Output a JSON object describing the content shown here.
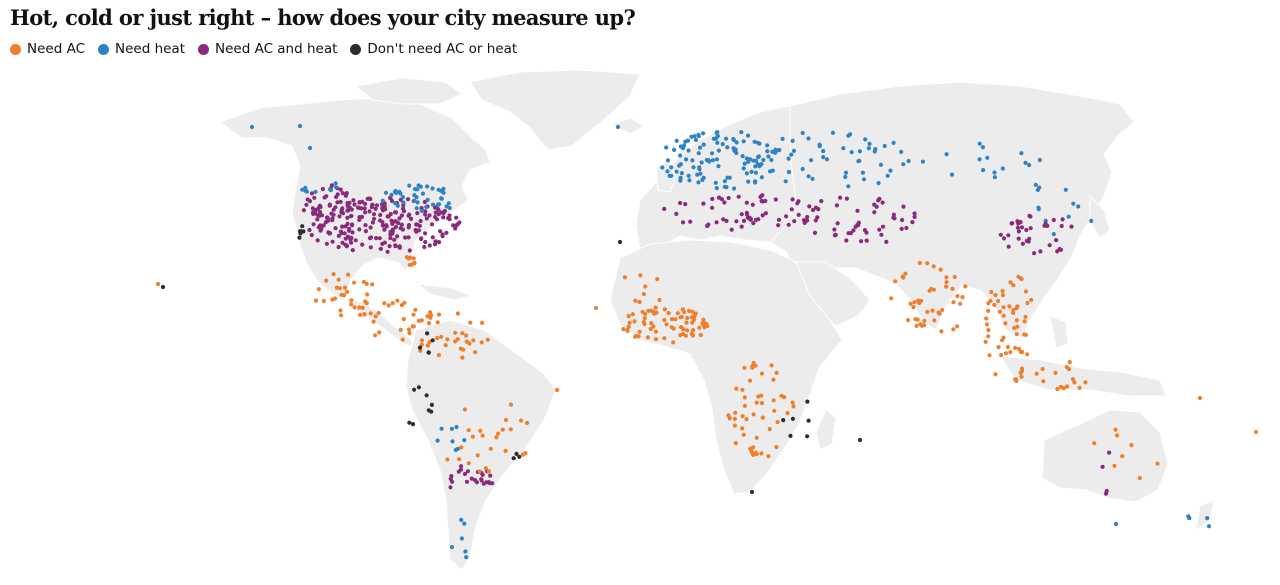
{
  "title": "Hot, cold or just right – how does your city measure up?",
  "legend": [
    {
      "id": "ac",
      "label": "Need AC",
      "color": "#f07f2b"
    },
    {
      "id": "heat",
      "label": "Need heat",
      "color": "#2f83c5"
    },
    {
      "id": "both",
      "label": "Need AC and heat",
      "color": "#8a2a7b"
    },
    {
      "id": "none",
      "label": "Don't need AC or heat",
      "color": "#2d2d2d"
    }
  ],
  "map": {
    "projection": "equirectangular",
    "land_color": "#ececec",
    "background": "#ffffff",
    "point_counts": {
      "ac": 420,
      "heat": 240,
      "both": 470,
      "none": 45
    }
  }
}
